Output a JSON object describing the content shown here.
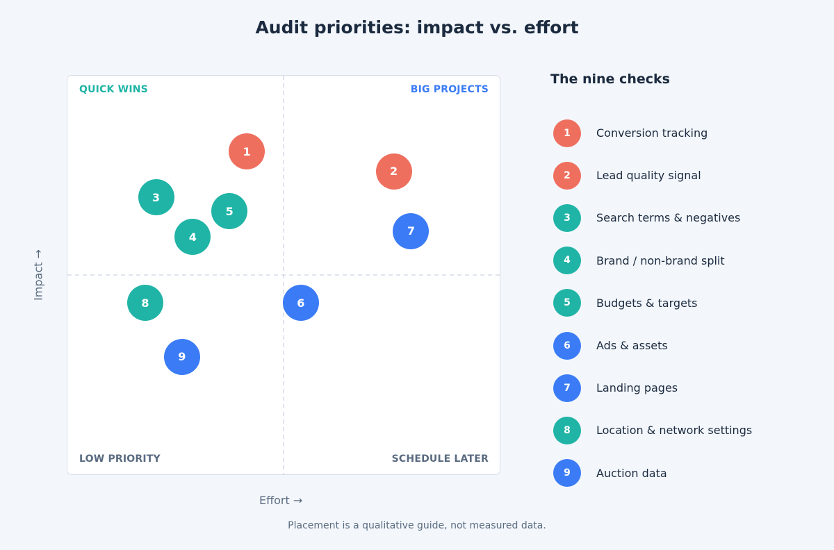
{
  "title": "Audit priorities: impact vs. effort",
  "footnote": "Placement is a qualitative guide, not measured data.",
  "colors": {
    "red": "#ef6f5e",
    "teal": "#20b4a6",
    "blue": "#3b7cf6",
    "background": "#f3f7fc",
    "text": "#1b2a3e",
    "muted": "#5a6b80"
  },
  "chart_data": {
    "type": "scatter",
    "title": "Audit priorities: impact vs. effort",
    "xlabel": "Effort  →",
    "ylabel": "Impact  →",
    "xlim": [
      0,
      10
    ],
    "ylim": [
      0,
      10
    ],
    "quadrant_split": {
      "x": 5,
      "y": 5
    },
    "quadrant_labels": {
      "top_left": "QUICK WINS",
      "top_right": "BIG PROJECTS",
      "bottom_left": "LOW PRIORITY",
      "bottom_right": "SCHEDULE LATER"
    },
    "points": [
      {
        "id": "1",
        "x": 4.15,
        "y": 8.1,
        "color": "red"
      },
      {
        "id": "2",
        "x": 7.55,
        "y": 7.6,
        "color": "red"
      },
      {
        "id": "3",
        "x": 2.05,
        "y": 6.95,
        "color": "teal"
      },
      {
        "id": "4",
        "x": 2.9,
        "y": 5.95,
        "color": "teal"
      },
      {
        "id": "5",
        "x": 3.75,
        "y": 6.6,
        "color": "teal"
      },
      {
        "id": "6",
        "x": 5.4,
        "y": 4.3,
        "color": "blue"
      },
      {
        "id": "7",
        "x": 7.95,
        "y": 6.1,
        "color": "blue"
      },
      {
        "id": "8",
        "x": 1.8,
        "y": 4.3,
        "color": "teal"
      },
      {
        "id": "9",
        "x": 2.65,
        "y": 2.95,
        "color": "blue"
      }
    ]
  },
  "legend": {
    "title": "The nine checks",
    "items": [
      {
        "id": "1",
        "label": "Conversion tracking",
        "color": "red"
      },
      {
        "id": "2",
        "label": "Lead quality signal",
        "color": "red"
      },
      {
        "id": "3",
        "label": "Search terms & negatives",
        "color": "teal"
      },
      {
        "id": "4",
        "label": "Brand / non-brand split",
        "color": "teal"
      },
      {
        "id": "5",
        "label": "Budgets & targets",
        "color": "teal"
      },
      {
        "id": "6",
        "label": "Ads & assets",
        "color": "blue"
      },
      {
        "id": "7",
        "label": "Landing pages",
        "color": "blue"
      },
      {
        "id": "8",
        "label": "Location & network settings",
        "color": "teal"
      },
      {
        "id": "9",
        "label": "Auction data",
        "color": "blue"
      }
    ]
  }
}
